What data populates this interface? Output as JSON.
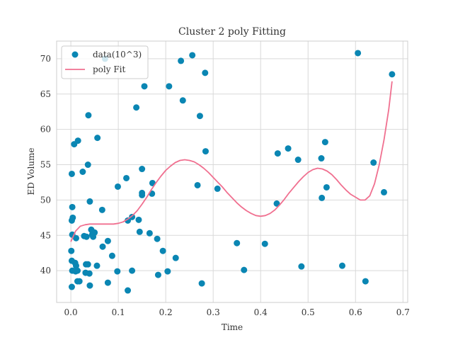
{
  "chart_data": {
    "type": "scatter",
    "title": "Cluster 2 poly Fitting",
    "xlabel": "Time",
    "ylabel": "ED Volume",
    "xlim": [
      -0.03,
      0.71
    ],
    "ylim": [
      35.5,
      72.5
    ],
    "x_ticks": [
      "0.0",
      "0.1",
      "0.2",
      "0.3",
      "0.4",
      "0.5",
      "0.6",
      "0.7"
    ],
    "x_tick_values": [
      0.0,
      0.1,
      0.2,
      0.3,
      0.4,
      0.5,
      0.6,
      0.7
    ],
    "y_ticks": [
      "40",
      "45",
      "50",
      "55",
      "60",
      "65",
      "70"
    ],
    "y_tick_values": [
      40,
      45,
      50,
      55,
      60,
      65,
      70
    ],
    "grid": true,
    "legend_position": "top-left",
    "series": [
      {
        "name": "data(10^3)",
        "kind": "scatter",
        "color": "#0a86b3",
        "points": [
          [
            0.072,
            70.0
          ],
          [
            0.256,
            70.5
          ],
          [
            0.232,
            69.7
          ],
          [
            0.283,
            68.0
          ],
          [
            0.605,
            70.8
          ],
          [
            0.677,
            67.8
          ],
          [
            0.155,
            66.1
          ],
          [
            0.207,
            66.1
          ],
          [
            0.236,
            64.1
          ],
          [
            0.138,
            63.1
          ],
          [
            0.037,
            62.0
          ],
          [
            0.272,
            61.9
          ],
          [
            0.015,
            58.4
          ],
          [
            0.056,
            58.8
          ],
          [
            0.007,
            57.9
          ],
          [
            0.284,
            56.9
          ],
          [
            0.436,
            56.6
          ],
          [
            0.458,
            57.3
          ],
          [
            0.536,
            58.2
          ],
          [
            0.479,
            55.7
          ],
          [
            0.528,
            55.9
          ],
          [
            0.638,
            55.3
          ],
          [
            0.036,
            55.0
          ],
          [
            0.025,
            54.0
          ],
          [
            0.002,
            53.7
          ],
          [
            0.15,
            54.4
          ],
          [
            0.117,
            53.1
          ],
          [
            0.172,
            52.4
          ],
          [
            0.267,
            52.1
          ],
          [
            0.099,
            51.9
          ],
          [
            0.309,
            51.6
          ],
          [
            0.539,
            51.8
          ],
          [
            0.66,
            51.1
          ],
          [
            0.15,
            50.7
          ],
          [
            0.15,
            51.0
          ],
          [
            0.171,
            50.9
          ],
          [
            0.529,
            50.3
          ],
          [
            0.04,
            49.8
          ],
          [
            0.434,
            49.5
          ],
          [
            0.003,
            49.0
          ],
          [
            0.066,
            48.6
          ],
          [
            0.004,
            47.5
          ],
          [
            0.002,
            47.1
          ],
          [
            0.129,
            47.6
          ],
          [
            0.12,
            47.1
          ],
          [
            0.143,
            47.2
          ],
          [
            0.043,
            45.8
          ],
          [
            0.003,
            45.1
          ],
          [
            0.028,
            44.9
          ],
          [
            0.045,
            45.1
          ],
          [
            0.046,
            45.5
          ],
          [
            0.05,
            45.4
          ],
          [
            0.033,
            44.8
          ],
          [
            0.047,
            44.8
          ],
          [
            0.011,
            44.6
          ],
          [
            0.145,
            45.5
          ],
          [
            0.166,
            45.3
          ],
          [
            0.182,
            44.5
          ],
          [
            0.078,
            44.2
          ],
          [
            0.35,
            43.9
          ],
          [
            0.409,
            43.8
          ],
          [
            0.001,
            42.8
          ],
          [
            0.067,
            43.4
          ],
          [
            0.194,
            42.8
          ],
          [
            0.087,
            42.1
          ],
          [
            0.221,
            41.8
          ],
          [
            0.002,
            41.4
          ],
          [
            0.009,
            41.1
          ],
          [
            0.011,
            40.7
          ],
          [
            0.032,
            40.9
          ],
          [
            0.036,
            40.9
          ],
          [
            0.055,
            40.7
          ],
          [
            0.003,
            40.0
          ],
          [
            0.01,
            39.9
          ],
          [
            0.014,
            40.0
          ],
          [
            0.031,
            39.7
          ],
          [
            0.039,
            39.6
          ],
          [
            0.098,
            39.9
          ],
          [
            0.129,
            40.0
          ],
          [
            0.204,
            39.9
          ],
          [
            0.184,
            39.4
          ],
          [
            0.365,
            40.1
          ],
          [
            0.486,
            40.6
          ],
          [
            0.572,
            40.7
          ],
          [
            0.014,
            38.5
          ],
          [
            0.018,
            38.5
          ],
          [
            0.078,
            38.3
          ],
          [
            0.276,
            38.2
          ],
          [
            0.621,
            38.5
          ],
          [
            0.002,
            37.7
          ],
          [
            0.04,
            37.9
          ],
          [
            0.12,
            37.2
          ]
        ]
      },
      {
        "name": "poly Fit",
        "kind": "line",
        "color": "#f07090",
        "x": [
          0.0,
          0.01,
          0.02,
          0.03,
          0.04,
          0.05,
          0.06,
          0.07,
          0.08,
          0.09,
          0.1,
          0.11,
          0.12,
          0.13,
          0.14,
          0.15,
          0.16,
          0.17,
          0.18,
          0.19,
          0.2,
          0.21,
          0.22,
          0.23,
          0.24,
          0.25,
          0.26,
          0.27,
          0.28,
          0.29,
          0.3,
          0.31,
          0.32,
          0.33,
          0.34,
          0.35,
          0.36,
          0.37,
          0.38,
          0.39,
          0.4,
          0.41,
          0.42,
          0.43,
          0.44,
          0.45,
          0.46,
          0.47,
          0.48,
          0.49,
          0.5,
          0.51,
          0.52,
          0.53,
          0.54,
          0.55,
          0.56,
          0.57,
          0.58,
          0.59,
          0.6,
          0.61,
          0.62,
          0.63,
          0.64,
          0.65,
          0.66,
          0.67,
          0.677
        ],
        "y": [
          44.1,
          45.6,
          46.3,
          46.5,
          46.6,
          46.6,
          46.6,
          46.6,
          46.6,
          46.6,
          46.7,
          46.9,
          47.3,
          47.8,
          48.5,
          49.4,
          50.4,
          51.5,
          52.5,
          53.4,
          54.2,
          54.8,
          55.3,
          55.6,
          55.7,
          55.6,
          55.4,
          55.0,
          54.5,
          53.9,
          53.2,
          52.5,
          51.8,
          51.0,
          50.3,
          49.6,
          49.0,
          48.5,
          48.1,
          47.8,
          47.7,
          47.8,
          48.1,
          48.6,
          49.3,
          50.1,
          51.0,
          51.8,
          52.6,
          53.3,
          53.9,
          54.3,
          54.5,
          54.4,
          54.1,
          53.6,
          52.9,
          52.1,
          51.4,
          50.8,
          50.4,
          50.0,
          50.0,
          50.6,
          52.3,
          55.0,
          58.5,
          62.8,
          66.8
        ]
      }
    ]
  }
}
